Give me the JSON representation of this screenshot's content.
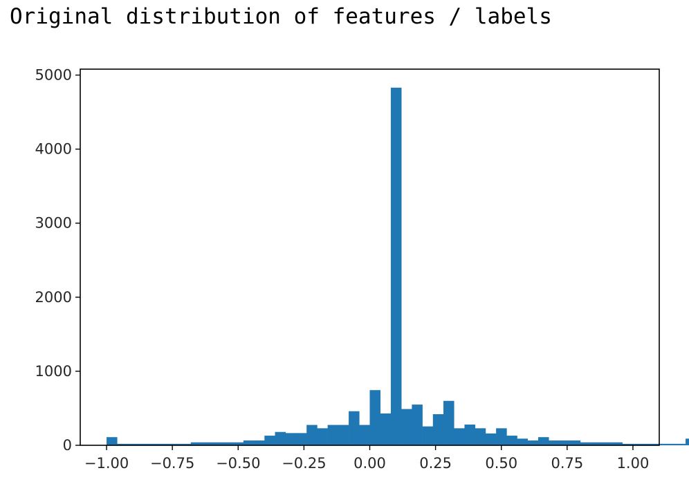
{
  "header": {
    "title": "Original distribution of features / labels"
  },
  "chart_data": {
    "type": "bar",
    "title": "",
    "xlabel": "",
    "ylabel": "",
    "bar_color": "#1f77b4",
    "xlim": [
      -1.1,
      1.1
    ],
    "ylim": [
      0,
      5080
    ],
    "grid": false,
    "x_ticks": [
      {
        "value": -1.0,
        "label": "−1.00"
      },
      {
        "value": -0.75,
        "label": "−0.75"
      },
      {
        "value": -0.5,
        "label": "−0.50"
      },
      {
        "value": -0.25,
        "label": "−0.25"
      },
      {
        "value": 0.0,
        "label": "0.00"
      },
      {
        "value": 0.25,
        "label": "0.25"
      },
      {
        "value": 0.5,
        "label": "0.50"
      },
      {
        "value": 0.75,
        "label": "0.75"
      },
      {
        "value": 1.0,
        "label": "1.00"
      }
    ],
    "y_ticks": [
      {
        "value": 0,
        "label": "0"
      },
      {
        "value": 1000,
        "label": "1000"
      },
      {
        "value": 2000,
        "label": "2000"
      },
      {
        "value": 3000,
        "label": "3000"
      },
      {
        "value": 4000,
        "label": "4000"
      },
      {
        "value": 5000,
        "label": "5000"
      }
    ],
    "bin_start": -1.0,
    "bin_width": 0.04,
    "counts": [
      110,
      20,
      20,
      20,
      20,
      20,
      20,
      20,
      40,
      40,
      40,
      40,
      40,
      65,
      65,
      130,
      180,
      165,
      165,
      275,
      230,
      275,
      275,
      460,
      275,
      745,
      430,
      4830,
      490,
      550,
      255,
      420,
      600,
      230,
      280,
      230,
      160,
      230,
      130,
      90,
      65,
      110,
      65,
      65,
      65,
      40,
      40,
      40,
      40,
      20,
      20,
      20,
      20,
      20,
      20,
      90
    ]
  }
}
